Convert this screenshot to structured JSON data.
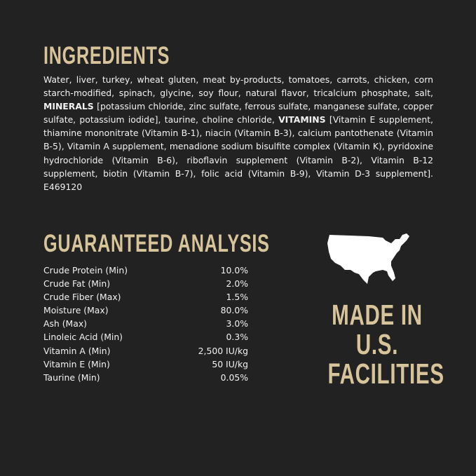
{
  "ingredients": {
    "title": "INGREDIENTS",
    "text_1": "Water, liver, turkey, wheat gluten, meat by-products, tomatoes, carrots, chicken, corn starch-modified, spinach, glycine, soy flour, natural flavor, tricalcium phosphate, salt, ",
    "minerals_label": "MINERALS",
    "text_2": " [potassium chloride, zinc sulfate, ferrous sulfate, manganese sulfate, copper sulfate, potassium iodide], taurine, choline chloride, ",
    "vitamins_label": "VITAMINS",
    "text_3": " [Vitamin E supplement, thiamine mononitrate (Vitamin B-1), niacin (Vitamin B-3), calcium pantothenate (Vitamin B-5), Vitamin A supplement, menadione sodium bisulfite complex (Vitamin K), pyridoxine hydrochloride (Vitamin B-6), riboflavin supplement (Vitamin B-2), Vitamin B-12 supplement, biotin (Vitamin B-7), folic acid (Vitamin B-9), Vitamin D-3 supplement].  E469120"
  },
  "analysis": {
    "title": "GUARANTEED ANALYSIS",
    "rows": [
      {
        "label": "Crude Protein (Min)",
        "value": "10.0%"
      },
      {
        "label": "Crude Fat (Min)",
        "value": "2.0%"
      },
      {
        "label": "Crude Fiber (Max)",
        "value": "1.5%"
      },
      {
        "label": "Moisture (Max)",
        "value": "80.0%"
      },
      {
        "label": "Ash (Max)",
        "value": "3.0%"
      },
      {
        "label": "Linoleic Acid (Min)",
        "value": "0.3%"
      },
      {
        "label": "Vitamin A (Min)",
        "value": "2,500 IU/kg"
      },
      {
        "label": "Vitamin E (Min)",
        "value": "50 IU/kg"
      },
      {
        "label": "Taurine (Min)",
        "value": "0.05%"
      }
    ]
  },
  "badge": {
    "icon": "usa-map-icon",
    "lines": [
      "MADE IN",
      "U.S.",
      "FACILITIES"
    ]
  },
  "colors": {
    "background": "#222222",
    "accent": "#d8c49a",
    "text": "#f2f2f2"
  }
}
